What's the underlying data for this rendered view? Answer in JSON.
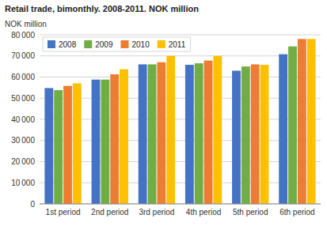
{
  "chart_data": {
    "type": "bar",
    "title": "Retail trade, bimonthly.  2008-2011. NOK million",
    "ylabel": "NOK million",
    "categories": [
      "1st period",
      "2nd period",
      "3rd period",
      "4th period",
      "5th period",
      "6th period"
    ],
    "series": [
      {
        "name": "2008",
        "color": "#4472C4",
        "values": [
          54800,
          58800,
          66000,
          65800,
          63000,
          70800
        ]
      },
      {
        "name": "2009",
        "color": "#70AD47",
        "values": [
          53800,
          58800,
          66000,
          66500,
          65000,
          74500
        ]
      },
      {
        "name": "2010",
        "color": "#ED7D31",
        "values": [
          55800,
          61300,
          67000,
          67800,
          66000,
          78000
        ]
      },
      {
        "name": "2011",
        "color": "#FFC000",
        "values": [
          57000,
          63700,
          70000,
          70000,
          65800,
          78000
        ]
      }
    ],
    "ylim": [
      0,
      80000
    ],
    "yticks": [
      0,
      {
        "value": 10000,
        "label": "10 000"
      },
      {
        "value": 20000,
        "label": "20 000"
      },
      {
        "value": 30000,
        "label": "30 000"
      },
      {
        "value": 40000,
        "label": "40 000"
      },
      {
        "value": 50000,
        "label": "50 000"
      },
      {
        "value": 60000,
        "label": "60 000"
      },
      {
        "value": 70000,
        "label": "70 000"
      },
      {
        "value": 80000,
        "label": "80 000"
      }
    ],
    "grid": true,
    "legend": "upper left"
  }
}
